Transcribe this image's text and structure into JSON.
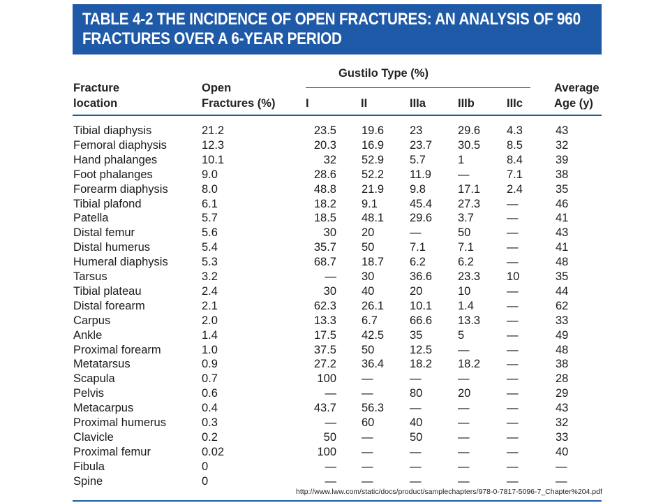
{
  "title": {
    "line1": "TABLE 4-2 THE INCIDENCE OF OPEN FRACTURES: AN ANALYSIS OF 960",
    "line2": "FRACTURES OVER A 6-YEAR PERIOD"
  },
  "header": {
    "fracture_location": [
      "Fracture",
      "location"
    ],
    "open_fractures": [
      "Open",
      "Fractures (%)"
    ],
    "gustilo_group": "Gustilo Type (%)",
    "gustilo_types": [
      "I",
      "II",
      "IIIa",
      "IIIb",
      "IIIc"
    ],
    "average_age": [
      "Average",
      "Age (y)"
    ]
  },
  "rows": [
    {
      "location": "Tibial diaphysis",
      "open": "21.2",
      "i": "23.5",
      "ii": "19.6",
      "iiia": "23",
      "iiib": "29.6",
      "iiic": "4.3",
      "age": "43"
    },
    {
      "location": "Femoral diaphysis",
      "open": "12.3",
      "i": "20.3",
      "ii": "16.9",
      "iiia": "23.7",
      "iiib": "30.5",
      "iiic": "8.5",
      "age": "32"
    },
    {
      "location": "Hand phalanges",
      "open": "10.1",
      "i": "32",
      "ii": "52.9",
      "iiia": "5.7",
      "iiib": "1",
      "iiic": "8.4",
      "age": "39"
    },
    {
      "location": "Foot phalanges",
      "open": "9.0",
      "i": "28.6",
      "ii": "52.2",
      "iiia": "11.9",
      "iiib": "—",
      "iiic": "7.1",
      "age": "38"
    },
    {
      "location": "Forearm diaphysis",
      "open": "8.0",
      "i": "48.8",
      "ii": "21.9",
      "iiia": "9.8",
      "iiib": "17.1",
      "iiic": "2.4",
      "age": "35"
    },
    {
      "location": "Tibial plafond",
      "open": "6.1",
      "i": "18.2",
      "ii": "9.1",
      "iiia": "45.4",
      "iiib": "27.3",
      "iiic": "—",
      "age": "46"
    },
    {
      "location": "Patella",
      "open": "5.7",
      "i": "18.5",
      "ii": "48.1",
      "iiia": "29.6",
      "iiib": "3.7",
      "iiic": "—",
      "age": "41"
    },
    {
      "location": "Distal femur",
      "open": "5.6",
      "i": "30",
      "ii": "20",
      "iiia": "—",
      "iiib": "50",
      "iiic": "—",
      "age": "43"
    },
    {
      "location": "Distal humerus",
      "open": "5.4",
      "i": "35.7",
      "ii": "50",
      "iiia": "7.1",
      "iiib": "7.1",
      "iiic": "—",
      "age": "41"
    },
    {
      "location": "Humeral diaphysis",
      "open": "5.3",
      "i": "68.7",
      "ii": "18.7",
      "iiia": "6.2",
      "iiib": "6.2",
      "iiic": "—",
      "age": "48"
    },
    {
      "location": "Tarsus",
      "open": "3.2",
      "i": "—",
      "ii": "30",
      "iiia": "36.6",
      "iiib": "23.3",
      "iiic": "10",
      "age": "35"
    },
    {
      "location": "Tibial plateau",
      "open": "2.4",
      "i": "30",
      "ii": "40",
      "iiia": "20",
      "iiib": "10",
      "iiic": "—",
      "age": "44"
    },
    {
      "location": "Distal forearm",
      "open": "2.1",
      "i": "62.3",
      "ii": "26.1",
      "iiia": "10.1",
      "iiib": "1.4",
      "iiic": "—",
      "age": "62"
    },
    {
      "location": "Carpus",
      "open": "2.0",
      "i": "13.3",
      "ii": "6.7",
      "iiia": "66.6",
      "iiib": "13.3",
      "iiic": "—",
      "age": "33"
    },
    {
      "location": "Ankle",
      "open": "1.4",
      "i": "17.5",
      "ii": "42.5",
      "iiia": "35",
      "iiib": "5",
      "iiic": "—",
      "age": "49"
    },
    {
      "location": "Proximal forearm",
      "open": "1.0",
      "i": "37.5",
      "ii": "50",
      "iiia": "12.5",
      "iiib": "—",
      "iiic": "—",
      "age": "48"
    },
    {
      "location": "Metatarsus",
      "open": "0.9",
      "i": "27.2",
      "ii": "36.4",
      "iiia": "18.2",
      "iiib": "18.2",
      "iiic": "—",
      "age": "38"
    },
    {
      "location": "Scapula",
      "open": "0.7",
      "i": "100",
      "ii": "—",
      "iiia": "—",
      "iiib": "—",
      "iiic": "—",
      "age": "28"
    },
    {
      "location": "Pelvis",
      "open": "0.6",
      "i": "—",
      "ii": "—",
      "iiia": "80",
      "iiib": "20",
      "iiic": "—",
      "age": "29"
    },
    {
      "location": "Metacarpus",
      "open": "0.4",
      "i": "43.7",
      "ii": "56.3",
      "iiia": "—",
      "iiib": "—",
      "iiic": "—",
      "age": "43"
    },
    {
      "location": "Proximal humerus",
      "open": "0.3",
      "i": "—",
      "ii": "60",
      "iiia": "40",
      "iiib": "—",
      "iiic": "—",
      "age": "32"
    },
    {
      "location": "Clavicle",
      "open": "0.2",
      "i": "50",
      "ii": "—",
      "iiia": "50",
      "iiib": "—",
      "iiic": "—",
      "age": "33"
    },
    {
      "location": "Proximal femur",
      "open": "0.02",
      "i": "100",
      "ii": "—",
      "iiia": "—",
      "iiib": "—",
      "iiic": "—",
      "age": "40"
    },
    {
      "location": "Fibula",
      "open": "0",
      "i": "—",
      "ii": "—",
      "iiia": "—",
      "iiib": "—",
      "iiic": "—",
      "age": "—"
    },
    {
      "location": "Spine",
      "open": "0",
      "i": "—",
      "ii": "—",
      "iiia": "—",
      "iiib": "—",
      "iiic": "—",
      "age": "—"
    }
  ],
  "source_url": "http://www.lww.com/static/docs/product/samplechapters/978-0-7817-5096-7_Chapter%204.pdf",
  "colors": {
    "banner": "#1f5aa8",
    "banner_text": "#ffffff",
    "rules": "#1f5aa8"
  }
}
